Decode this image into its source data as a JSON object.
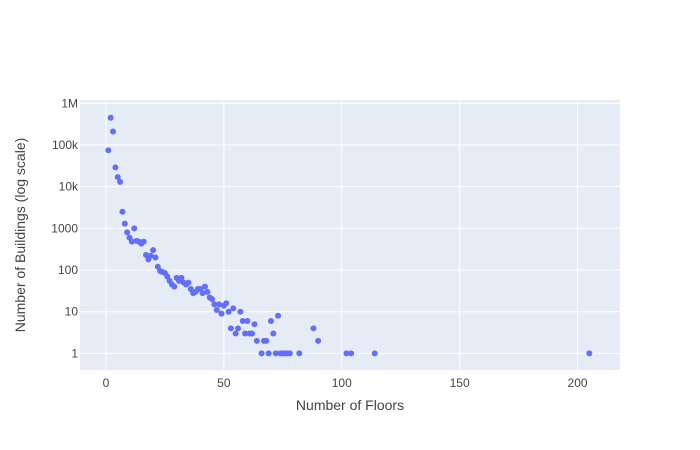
{
  "chart_data": {
    "type": "scatter",
    "xlabel": "Number of Floors",
    "ylabel": "Number of Buildings (log scale)",
    "xlim": [
      -11,
      218
    ],
    "ylim": [
      0.4,
      1200000
    ],
    "y_scale": "log",
    "grid": true,
    "colors": {
      "marker": "#636efa",
      "plot_background": "#e5ecf6",
      "grid": "#ffffff"
    },
    "x_ticks": [
      {
        "value": 0,
        "label": "0"
      },
      {
        "value": 50,
        "label": "50"
      },
      {
        "value": 100,
        "label": "100"
      },
      {
        "value": 150,
        "label": "150"
      },
      {
        "value": 200,
        "label": "200"
      }
    ],
    "y_ticks": [
      {
        "value": 1,
        "label": "1"
      },
      {
        "value": 10,
        "label": "10"
      },
      {
        "value": 100,
        "label": "100"
      },
      {
        "value": 1000,
        "label": "1000"
      },
      {
        "value": 10000,
        "label": "10k"
      },
      {
        "value": 100000,
        "label": "100k"
      },
      {
        "value": 1000000,
        "label": "1M"
      }
    ],
    "x": [
      1,
      2,
      3,
      4,
      5,
      6,
      7,
      8,
      9,
      10,
      11,
      12,
      13,
      14,
      15,
      16,
      17,
      18,
      19,
      20,
      21,
      22,
      23,
      24,
      25,
      26,
      27,
      28,
      29,
      30,
      31,
      32,
      33,
      34,
      35,
      36,
      37,
      38,
      39,
      40,
      41,
      42,
      43,
      44,
      45,
      46,
      47,
      48,
      49,
      50,
      51,
      52,
      53,
      54,
      55,
      56,
      57,
      58,
      59,
      60,
      61,
      62,
      63,
      64,
      66,
      67,
      68,
      69,
      70,
      71,
      72,
      73,
      74,
      75,
      76,
      77,
      78,
      82,
      88,
      90,
      102,
      104,
      114,
      205
    ],
    "y": [
      75000,
      450000,
      210000,
      29000,
      17000,
      13000,
      2500,
      1300,
      800,
      600,
      480,
      1000,
      500,
      480,
      430,
      480,
      230,
      180,
      220,
      300,
      200,
      120,
      95,
      90,
      85,
      70,
      55,
      45,
      40,
      65,
      55,
      65,
      50,
      45,
      50,
      35,
      28,
      30,
      35,
      35,
      28,
      40,
      30,
      22,
      20,
      15,
      11,
      15,
      9,
      14,
      16,
      10,
      4,
      12,
      3,
      4,
      10,
      6,
      3,
      6,
      3,
      3,
      5,
      2,
      1,
      2,
      2,
      1,
      6,
      3,
      1,
      8,
      1,
      1,
      1,
      1,
      1,
      1,
      4,
      2,
      1,
      1,
      1,
      1
    ]
  }
}
